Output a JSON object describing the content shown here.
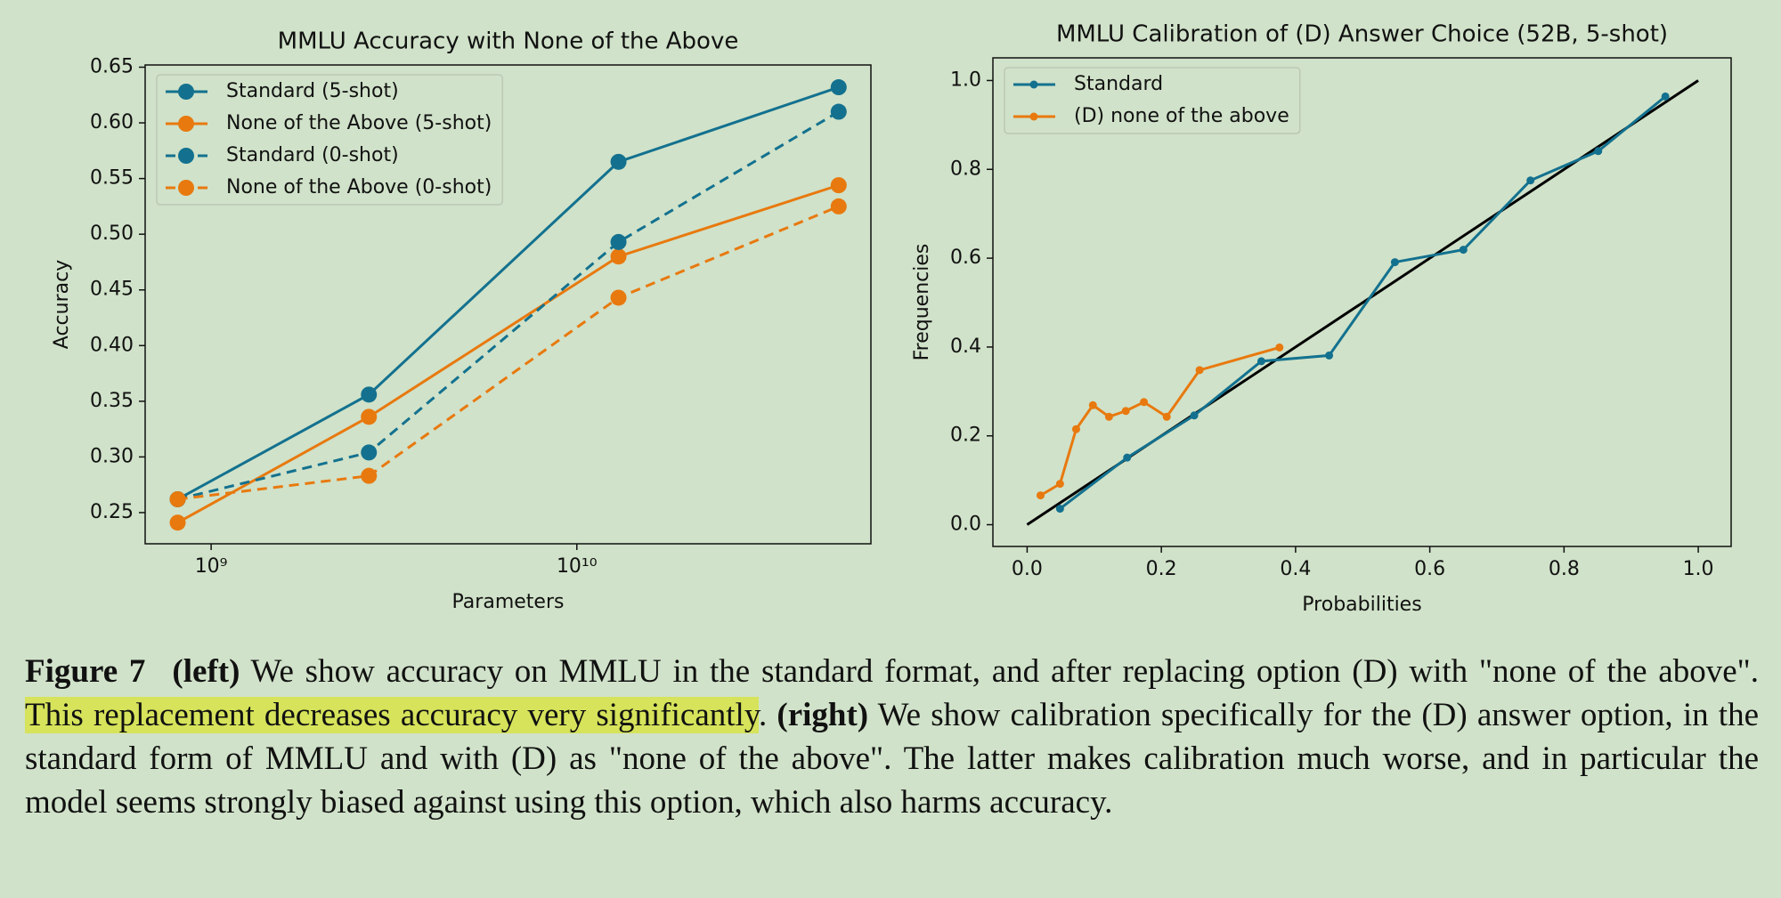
{
  "chart_data": [
    {
      "type": "line",
      "title": "MMLU Accuracy with None of the Above",
      "x_label": "Parameters",
      "y_label": "Accuracy",
      "xscale": "log",
      "x": [
        810000000,
        2700000000,
        13000000000,
        52000000000
      ],
      "xlim": [
        660000000,
        63700000000
      ],
      "xticks": [
        {
          "value": 1000000000,
          "label": "10⁹"
        },
        {
          "value": 10000000000,
          "label": "10¹⁰"
        }
      ],
      "ylim": [
        0.222,
        0.652
      ],
      "yticks": [
        0.25,
        {
          "value": 0.3,
          "label": "0.30"
        },
        0.35,
        {
          "value": 0.4,
          "label": "0.40"
        },
        0.45,
        {
          "value": 0.5,
          "label": "0.50"
        },
        0.55,
        {
          "value": 0.6,
          "label": "0.60"
        },
        0.65
      ],
      "legend": "upper left",
      "grid": false,
      "series": [
        {
          "name": "Standard (5-shot)",
          "color": "#13718f",
          "style": "solid",
          "values": [
            0.262,
            0.356,
            0.565,
            0.632
          ]
        },
        {
          "name": "None of the Above (5-shot)",
          "color": "#e8790e",
          "style": "solid",
          "values": [
            0.241,
            0.336,
            0.48,
            0.544
          ]
        },
        {
          "name": "Standard (0-shot)",
          "color": "#13718f",
          "style": "dashed",
          "values": [
            0.262,
            0.304,
            0.493,
            0.61
          ]
        },
        {
          "name": "None of the Above (0-shot)",
          "color": "#e8790e",
          "style": "dashed",
          "values": [
            0.262,
            0.283,
            0.443,
            0.525
          ]
        }
      ]
    },
    {
      "type": "line",
      "title": "MMLU Calibration of (D) Answer Choice (52B, 5-shot)",
      "x_label": "Probabilities",
      "y_label": "Frequencies",
      "xlim": [
        -0.051,
        1.049
      ],
      "xticks": [
        {
          "value": 0,
          "label": "0.0"
        },
        0.2,
        0.4,
        0.6,
        0.8,
        {
          "value": 1,
          "label": "1.0"
        }
      ],
      "ylim": [
        -0.049,
        1.051
      ],
      "yticks": [
        {
          "value": 0,
          "label": "0.0"
        },
        0.2,
        0.4,
        0.6,
        0.8,
        {
          "value": 1,
          "label": "1.0"
        }
      ],
      "legend": "upper left",
      "grid": false,
      "reference_line": {
        "color": "#000000",
        "x": [
          0,
          1
        ],
        "y": [
          0,
          1
        ]
      },
      "series": [
        {
          "name": "Standard",
          "color": "#13718f",
          "style": "solid",
          "x": [
            0.049,
            0.149,
            0.249,
            0.349,
            0.45,
            0.548,
            0.65,
            0.75,
            0.851,
            0.951
          ],
          "values": [
            0.036,
            0.151,
            0.246,
            0.368,
            0.381,
            0.591,
            0.619,
            0.775,
            0.841,
            0.964
          ]
        },
        {
          "name": "(D) none of the above",
          "color": "#e8790e",
          "style": "solid",
          "x": [
            0.02,
            0.049,
            0.073,
            0.098,
            0.122,
            0.147,
            0.174,
            0.208,
            0.257,
            0.376
          ],
          "values": [
            0.066,
            0.092,
            0.215,
            0.269,
            0.243,
            0.256,
            0.276,
            0.243,
            0.348,
            0.399
          ]
        }
      ]
    }
  ],
  "caption": [
    {
      "text": "Figure 7",
      "style": "bold"
    },
    {
      "text": "(left)",
      "style": "bold"
    },
    {
      "text": " We show accuracy on MMLU in the standard format, and after replacing option (D) with \"none of the above\". ",
      "style": "normal"
    },
    {
      "text": "This replacement decreases accuracy very significantly",
      "style": "highlight"
    },
    {
      "text": ". ",
      "style": "normal"
    },
    {
      "text": "(right)",
      "style": "bold"
    },
    {
      "text": " We show calibration specifically for the (D) answer option, in the standard form of MMLU and with (D) as \"none of the above\". The latter makes calibration much worse, and in particular the model seems strongly biased against using this option, which also harms accuracy.",
      "style": "normal"
    }
  ]
}
